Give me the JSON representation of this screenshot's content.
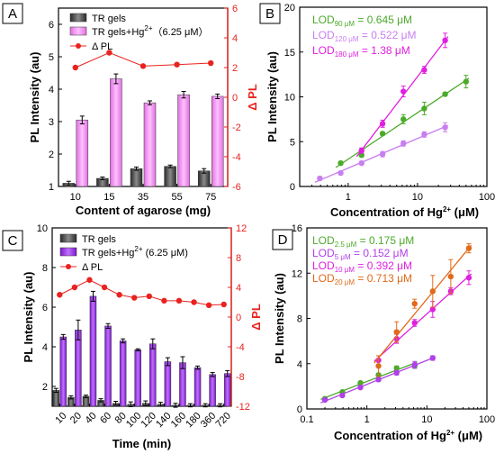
{
  "figure": {
    "panel_labels": [
      "A",
      "B",
      "C",
      "D"
    ]
  },
  "colors": {
    "dark_bar": "#4a4a4a",
    "pink_bar": "#ee82ee",
    "purple_bar": "#9a32e0",
    "red_line": "#e8231f",
    "green": "#4caa2a",
    "violet": "#c87ef0",
    "magenta": "#e020e0",
    "orange": "#e06a1a",
    "purple_fit": "#b040e8"
  },
  "chart_data": [
    {
      "panel": "A",
      "type": "bar",
      "xlabel": "Content of agarose (mg)",
      "ylabel": "PL Intensity (au)",
      "y2label": "Δ PL",
      "categories": [
        "10",
        "15",
        "35",
        "55",
        "75"
      ],
      "ylim": [
        1,
        6.5
      ],
      "yticks": [
        1,
        2,
        3,
        4,
        5,
        6
      ],
      "y2lim": [
        -6,
        6
      ],
      "y2ticks": [
        -6,
        -4,
        -2,
        0,
        2,
        4,
        6
      ],
      "legend": {
        "position": "top-left",
        "items": [
          "TR gels",
          "TR gels+Hg²⁺（6.25 μM）",
          "Δ PL"
        ]
      },
      "series": [
        {
          "name": "TR gels",
          "values": [
            1.1,
            1.25,
            1.55,
            1.62,
            1.48
          ],
          "errors": [
            0.06,
            0.04,
            0.05,
            0.04,
            0.07
          ]
        },
        {
          "name": "TR gels+Hg²⁺（6.25 μM）",
          "values": [
            3.05,
            4.32,
            3.58,
            3.83,
            3.78
          ],
          "errors": [
            0.12,
            0.15,
            0.06,
            0.1,
            0.07
          ]
        },
        {
          "name": "Δ PL",
          "axis": "right",
          "values": [
            2.0,
            3.0,
            2.1,
            2.2,
            2.3
          ]
        }
      ]
    },
    {
      "panel": "B",
      "type": "scatter",
      "xlabel": "Concentration of Hg²⁺ (μM)",
      "ylabel": "PL Intensity (au)",
      "xscale": "log",
      "xlim": [
        0.2,
        100
      ],
      "xticks": [
        1,
        10,
        100
      ],
      "ylim": [
        0,
        20
      ],
      "yticks": [
        0,
        5,
        10,
        15,
        20
      ],
      "annotations": [
        {
          "text": "LOD",
          "sub": "90 μM",
          "value": " = 0.645 μM"
        },
        {
          "text": "LOD",
          "sub": "120 μM",
          "value": " = 0.522 μM"
        },
        {
          "text": "LOD",
          "sub": "180 μM",
          "value": " = 1.38 μM"
        }
      ],
      "series": [
        {
          "name": "90 μM",
          "x": [
            0.78,
            1.56,
            3.13,
            6.25,
            12.5,
            25,
            50
          ],
          "y": [
            2.6,
            3.5,
            5.9,
            7.5,
            8.7,
            10.3,
            11.7
          ],
          "errors": [
            0.2,
            0.2,
            0.2,
            0.5,
            0.7,
            0.2,
            0.7
          ]
        },
        {
          "name": "120 μM",
          "x": [
            0.39,
            0.78,
            1.56,
            3.13,
            6.25,
            12.5,
            25
          ],
          "y": [
            0.9,
            1.5,
            2.6,
            3.6,
            4.8,
            5.8,
            6.6
          ],
          "errors": [
            0.2,
            0.2,
            0.2,
            0.3,
            0.3,
            0.3,
            0.5
          ]
        },
        {
          "name": "180 μM",
          "x": [
            1.56,
            3.13,
            6.25,
            12.5,
            25
          ],
          "y": [
            4.0,
            7.0,
            10.6,
            13.0,
            16.3
          ],
          "errors": [
            0.3,
            0.4,
            0.6,
            0.4,
            0.8
          ]
        }
      ]
    },
    {
      "panel": "C",
      "type": "bar",
      "xlabel": "Time (min)",
      "ylabel": "PL Intensity (au)",
      "y2label": "Δ PL",
      "categories": [
        "10",
        "20",
        "40",
        "60",
        "80",
        "100",
        "120",
        "140",
        "160",
        "180",
        "360",
        "720"
      ],
      "ylim": [
        1,
        10
      ],
      "yticks": [
        2,
        4,
        6,
        8,
        10
      ],
      "y2lim": [
        -12,
        12
      ],
      "y2ticks": [
        -12,
        -8,
        -4,
        0,
        4,
        8,
        12
      ],
      "legend": {
        "position": "top-left",
        "items": [
          "TR gels",
          "TR gels+Hg²⁺ (6.25 μM)",
          "Δ PL"
        ]
      },
      "series": [
        {
          "name": "TR gels",
          "values": [
            1.8,
            1.45,
            1.5,
            1.3,
            1.15,
            1.1,
            1.15,
            1.1,
            1.05,
            1.05,
            1.05,
            1.05
          ],
          "errors": [
            0.1,
            0.08,
            0.06,
            0.08,
            0.1,
            0.12,
            0.12,
            0.1,
            0.1,
            0.08,
            0.08,
            0.08
          ]
        },
        {
          "name": "TR gels+Hg²⁺ (6.25 μM)",
          "values": [
            4.5,
            4.85,
            6.55,
            5.05,
            4.3,
            3.85,
            4.15,
            3.25,
            3.2,
            2.95,
            2.6,
            2.65
          ],
          "errors": [
            0.12,
            0.5,
            0.25,
            0.12,
            0.1,
            0.05,
            0.25,
            0.2,
            0.3,
            0.08,
            0.1,
            0.15
          ]
        },
        {
          "name": "Δ PL",
          "axis": "right",
          "values": [
            3.0,
            4.0,
            5.0,
            4.0,
            3.0,
            2.6,
            2.8,
            2.2,
            2.2,
            2.0,
            1.6,
            1.7
          ]
        }
      ]
    },
    {
      "panel": "D",
      "type": "scatter",
      "xlabel": "Concentration of Hg²⁺ (μM)",
      "ylabel": "PL Intensity (au)",
      "xscale": "log",
      "xlim": [
        0.1,
        100
      ],
      "xticks": [
        0.1,
        1,
        10,
        100
      ],
      "ylim": [
        0,
        16
      ],
      "yticks": [
        0,
        4,
        8,
        12,
        16
      ],
      "annotations": [
        {
          "text": "LOD",
          "sub": "2.5 μM",
          "value": " = 0.175 μM"
        },
        {
          "text": "LOD",
          "sub": "5 μM",
          "value": " = 0.152 μM"
        },
        {
          "text": "LOD",
          "sub": "10 μM",
          "value": " = 0.392 μM"
        },
        {
          "text": "LOD",
          "sub": "20 μM",
          "value": " = 0.713 μM"
        }
      ],
      "series": [
        {
          "name": "2.5 μM",
          "x": [
            0.2,
            0.39,
            0.78,
            1.56,
            3.13,
            6.25
          ],
          "y": [
            0.9,
            1.5,
            2.3,
            3.0,
            3.6,
            3.8
          ],
          "errors": [
            0.1,
            0.1,
            0.15,
            0.15,
            0.2,
            0.2
          ]
        },
        {
          "name": "5 μM",
          "x": [
            0.2,
            0.39,
            0.78,
            1.56,
            3.13,
            6.25,
            12.5
          ],
          "y": [
            0.8,
            1.2,
            1.9,
            2.6,
            3.2,
            3.9,
            4.5
          ],
          "errors": [
            0.1,
            0.1,
            0.1,
            0.15,
            0.2,
            0.3,
            0.2
          ]
        },
        {
          "name": "10 μM",
          "x": [
            1.56,
            3.13,
            6.25,
            12.5,
            25,
            50
          ],
          "y": [
            4.3,
            6.2,
            7.6,
            8.8,
            10.4,
            11.6
          ],
          "errors": [
            0.4,
            0.4,
            0.3,
            0.7,
            0.3,
            0.6
          ]
        },
        {
          "name": "20 μM",
          "x": [
            1.56,
            3.13,
            6.25,
            12.5,
            25,
            50
          ],
          "y": [
            3.8,
            6.8,
            9.3,
            10.4,
            11.7,
            14.2
          ],
          "errors": [
            0.9,
            0.9,
            0.4,
            1.4,
            1.5,
            0.4
          ]
        }
      ]
    }
  ]
}
